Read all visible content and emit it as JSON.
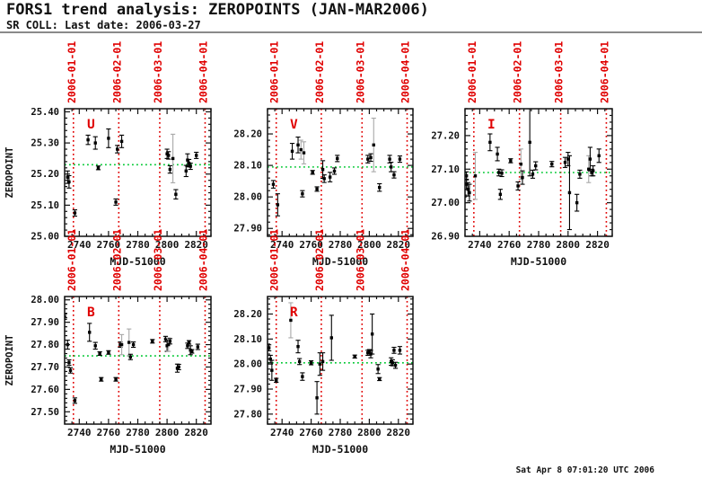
{
  "header": {
    "title": "FORS1 trend analysis: ZEROPOINTS (JAN-MAR2006)",
    "subtitle": "SR COLL: Last date: 2006-03-27"
  },
  "footer": {
    "timestamp": "Sat Apr 8 07:01:20 UTC 2006"
  },
  "colors": {
    "date_line_red": "#e00000",
    "trend_green": "#00c832",
    "data_black": "#000000",
    "gray_error": "#a8a8a8",
    "frame_black": "#111111",
    "rule_gray": "#8a8a8a"
  },
  "axes": {
    "xlabel": "MJD-51000",
    "ylabel": "ZEROPOINT",
    "x_range": [
      2730,
      2830
    ],
    "x_ticks": [
      2740,
      2760,
      2780,
      2800,
      2820
    ],
    "x_minor_step": 5,
    "date_lines": [
      {
        "label": "2006-01-01",
        "x": 2736
      },
      {
        "label": "2006-02-01",
        "x": 2767
      },
      {
        "label": "2006-03-01",
        "x": 2795
      },
      {
        "label": "2006-04-01",
        "x": 2826
      }
    ]
  },
  "chart_data": [
    {
      "type": "scatter",
      "filter": "U",
      "y_range": [
        25.0,
        25.41
      ],
      "y_ticks": [
        25.0,
        25.1,
        25.2,
        25.3,
        25.4
      ],
      "y_minor_step": 0.02,
      "trend": 25.23,
      "points": [
        [
          2732,
          25.19,
          0.02
        ],
        [
          2733,
          25.175,
          0.02
        ],
        [
          2737,
          25.075,
          0.01
        ],
        [
          2746,
          25.31,
          0.015
        ],
        [
          2751,
          25.3,
          0.02
        ],
        [
          2753,
          25.22,
          0.006
        ],
        [
          2760,
          25.315,
          0.03
        ],
        [
          2765,
          25.11,
          0.01
        ],
        [
          2766,
          25.28,
          0.012
        ],
        [
          2769,
          25.305,
          0.02
        ],
        [
          2800,
          25.265,
          0.015
        ],
        [
          2801,
          25.26,
          0.012
        ],
        [
          2802,
          25.215,
          0.012
        ],
        [
          2804,
          25.25,
          0.078,
          1
        ],
        [
          2806,
          25.135,
          0.015
        ],
        [
          2813,
          25.21,
          0.018
        ],
        [
          2814,
          25.245,
          0.02
        ],
        [
          2815,
          25.235,
          0.012
        ],
        [
          2816,
          25.225,
          0.01
        ],
        [
          2820,
          25.26,
          0.01
        ]
      ]
    },
    {
      "type": "scatter",
      "filter": "V",
      "y_range": [
        27.875,
        28.28
      ],
      "y_ticks": [
        27.9,
        28.0,
        28.1,
        28.2
      ],
      "y_minor_step": 0.02,
      "trend": 28.095,
      "points": [
        [
          2734,
          28.04,
          0.012
        ],
        [
          2737,
          27.975,
          0.035
        ],
        [
          2747,
          28.145,
          0.025
        ],
        [
          2751,
          28.165,
          0.025
        ],
        [
          2753,
          28.15,
          0.03,
          1
        ],
        [
          2754,
          28.01,
          0.01
        ],
        [
          2755,
          28.14,
          0.035,
          1
        ],
        [
          2761,
          28.078,
          0.006
        ],
        [
          2764,
          28.025,
          0.007
        ],
        [
          2768,
          28.087,
          0.028
        ],
        [
          2769,
          28.058,
          0.012
        ],
        [
          2773,
          28.063,
          0.015
        ],
        [
          2776,
          28.082,
          0.01
        ],
        [
          2778,
          28.122,
          0.01
        ],
        [
          2799,
          28.12,
          0.012
        ],
        [
          2801,
          28.125,
          0.012
        ],
        [
          2803,
          28.165,
          0.085,
          1
        ],
        [
          2807,
          28.03,
          0.012
        ],
        [
          2814,
          28.12,
          0.012
        ],
        [
          2815,
          28.095,
          0.015
        ],
        [
          2817,
          28.07,
          0.01
        ],
        [
          2821,
          28.12,
          0.01
        ]
      ]
    },
    {
      "type": "scatter",
      "filter": "I",
      "y_range": [
        26.9,
        27.28
      ],
      "y_ticks": [
        26.9,
        27.0,
        27.1,
        27.2
      ],
      "y_minor_step": 0.02,
      "trend": 27.09,
      "points": [
        [
          2730,
          27.02,
          0.02
        ],
        [
          2731,
          27.08,
          0.012
        ],
        [
          2731,
          27.055,
          0.015
        ],
        [
          2732,
          27.04,
          0.02
        ],
        [
          2733,
          27.03,
          0.025
        ],
        [
          2737,
          27.08,
          0.07,
          1
        ],
        [
          2747,
          27.18,
          0.025
        ],
        [
          2752,
          27.145,
          0.02
        ],
        [
          2753,
          27.09,
          0.01
        ],
        [
          2754,
          27.025,
          0.015
        ],
        [
          2755,
          27.088,
          0.01
        ],
        [
          2761,
          27.125,
          0.006
        ],
        [
          2766,
          27.05,
          0.012
        ],
        [
          2768,
          27.115,
          0.045,
          1
        ],
        [
          2769,
          27.075,
          0.02
        ],
        [
          2774,
          27.18,
          0.1
        ],
        [
          2776,
          27.085,
          0.012
        ],
        [
          2778,
          27.11,
          0.012
        ],
        [
          2789,
          27.115,
          0.008
        ],
        [
          2798,
          27.12,
          0.015
        ],
        [
          2800,
          27.13,
          0.02
        ],
        [
          2801,
          27.03,
          0.11
        ],
        [
          2806,
          27.0,
          0.025
        ],
        [
          2808,
          27.085,
          0.012
        ],
        [
          2814,
          27.1,
          0.04,
          1
        ],
        [
          2815,
          27.13,
          0.035
        ],
        [
          2816,
          27.09,
          0.01
        ],
        [
          2817,
          27.095,
          0.015
        ],
        [
          2821,
          27.14,
          0.02
        ]
      ]
    },
    {
      "type": "scatter",
      "filter": "B",
      "y_range": [
        27.445,
        28.015
      ],
      "y_ticks": [
        27.5,
        27.6,
        27.7,
        27.8,
        27.9,
        28.0
      ],
      "y_minor_step": 0.02,
      "trend": 27.75,
      "points": [
        [
          2730,
          27.925,
          0.012
        ],
        [
          2732,
          27.8,
          0.02
        ],
        [
          2733,
          27.72,
          0.012
        ],
        [
          2734,
          27.685,
          0.012
        ],
        [
          2737,
          27.55,
          0.012
        ],
        [
          2747,
          27.855,
          0.04
        ],
        [
          2751,
          27.795,
          0.015
        ],
        [
          2754,
          27.76,
          0.008
        ],
        [
          2755,
          27.645,
          0.008
        ],
        [
          2760,
          27.765,
          0.008
        ],
        [
          2765,
          27.645,
          0.008
        ],
        [
          2768,
          27.8,
          0.012
        ],
        [
          2769,
          27.8,
          0.045,
          1
        ],
        [
          2774,
          27.81,
          0.06,
          1
        ],
        [
          2775,
          27.745,
          0.012
        ],
        [
          2777,
          27.8,
          0.012
        ],
        [
          2790,
          27.815,
          0.008
        ],
        [
          2799,
          27.825,
          0.012
        ],
        [
          2800,
          27.795,
          0.025
        ],
        [
          2801,
          27.8,
          0.03,
          1
        ],
        [
          2802,
          27.815,
          0.012
        ],
        [
          2807,
          27.695,
          0.018
        ],
        [
          2808,
          27.7,
          0.012
        ],
        [
          2814,
          27.795,
          0.012
        ],
        [
          2815,
          27.81,
          0.008
        ],
        [
          2816,
          27.775,
          0.02
        ],
        [
          2817,
          27.77,
          0.008
        ],
        [
          2821,
          27.79,
          0.012
        ]
      ]
    },
    {
      "type": "scatter",
      "filter": "R",
      "y_range": [
        27.76,
        28.27
      ],
      "y_ticks": [
        27.8,
        27.9,
        28.0,
        28.1,
        28.2
      ],
      "y_minor_step": 0.02,
      "trend": 28.005,
      "points": [
        [
          2731,
          28.065,
          0.012
        ],
        [
          2732,
          28.02,
          0.015
        ],
        [
          2733,
          27.975,
          0.04
        ],
        [
          2736,
          27.935,
          0.008
        ],
        [
          2746,
          28.175,
          0.07,
          1
        ],
        [
          2751,
          28.07,
          0.025
        ],
        [
          2752,
          28.01,
          0.012
        ],
        [
          2754,
          27.95,
          0.015
        ],
        [
          2760,
          28.005,
          0.008
        ],
        [
          2764,
          27.865,
          0.065
        ],
        [
          2766,
          28.0,
          0.045
        ],
        [
          2768,
          28.01,
          0.035
        ],
        [
          2774,
          28.105,
          0.09
        ],
        [
          2790,
          28.03,
          0.006
        ],
        [
          2799,
          28.045,
          0.01
        ],
        [
          2800,
          28.05,
          0.008
        ],
        [
          2801,
          28.04,
          0.015
        ],
        [
          2802,
          28.12,
          0.08
        ],
        [
          2806,
          27.98,
          0.018
        ],
        [
          2807,
          27.94,
          0.006
        ],
        [
          2815,
          28.01,
          0.015
        ],
        [
          2816,
          28.005,
          0.012
        ],
        [
          2817,
          28.055,
          0.012
        ],
        [
          2818,
          27.995,
          0.012
        ],
        [
          2821,
          28.055,
          0.015
        ]
      ]
    }
  ]
}
